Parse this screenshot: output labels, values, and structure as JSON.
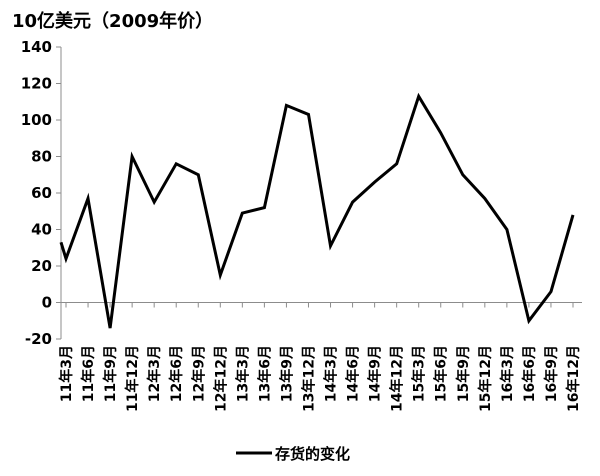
{
  "chart_data": {
    "type": "line",
    "unit_label": "10亿美元（2009年价）",
    "ylim": [
      -20,
      140
    ],
    "yticks": [
      -20,
      0,
      20,
      40,
      60,
      80,
      100,
      120,
      140
    ],
    "x_tick_labels": [
      "11年3月",
      "11年6月",
      "11年9月",
      "11年12月",
      "12年3月",
      "12年6月",
      "12年9月",
      "12年12月",
      "13年3月",
      "13年6月",
      "13年9月",
      "13年12月",
      "14年3月",
      "14年6月",
      "14年9月",
      "14年12月",
      "15年3月",
      "15年6月",
      "15年9月",
      "15年12月",
      "16年3月",
      "16年6月",
      "16年9月",
      "16年12月"
    ],
    "series": [
      {
        "name": "存货的变化",
        "color": "#000000",
        "points": [
          {
            "x": "11年1月",
            "y": 33
          },
          {
            "x": "11年3月",
            "y": 24
          },
          {
            "x": "11年6月",
            "y": 57
          },
          {
            "x": "11年9月",
            "y": -14
          },
          {
            "x": "11年12月",
            "y": 80
          },
          {
            "x": "12年3月",
            "y": 55
          },
          {
            "x": "12年6月",
            "y": 76
          },
          {
            "x": "12年9月",
            "y": 70
          },
          {
            "x": "12年12月",
            "y": 15
          },
          {
            "x": "13年3月",
            "y": 49
          },
          {
            "x": "13年6月",
            "y": 52
          },
          {
            "x": "13年9月",
            "y": 108
          },
          {
            "x": "13年12月",
            "y": 103
          },
          {
            "x": "14年3月",
            "y": 31
          },
          {
            "x": "14年6月",
            "y": 55
          },
          {
            "x": "14年9月",
            "y": 66
          },
          {
            "x": "14年12月",
            "y": 76
          },
          {
            "x": "15年3月",
            "y": 113
          },
          {
            "x": "15年6月",
            "y": 93
          },
          {
            "x": "15年9月",
            "y": 70
          },
          {
            "x": "15年12月",
            "y": 57
          },
          {
            "x": "16年3月",
            "y": 40
          },
          {
            "x": "16年6月",
            "y": -10
          },
          {
            "x": "16年9月",
            "y": 6
          },
          {
            "x": "16年12月",
            "y": 48
          }
        ]
      }
    ],
    "grid": false,
    "legend_position": "bottom",
    "legend_label": "存货的变化"
  }
}
